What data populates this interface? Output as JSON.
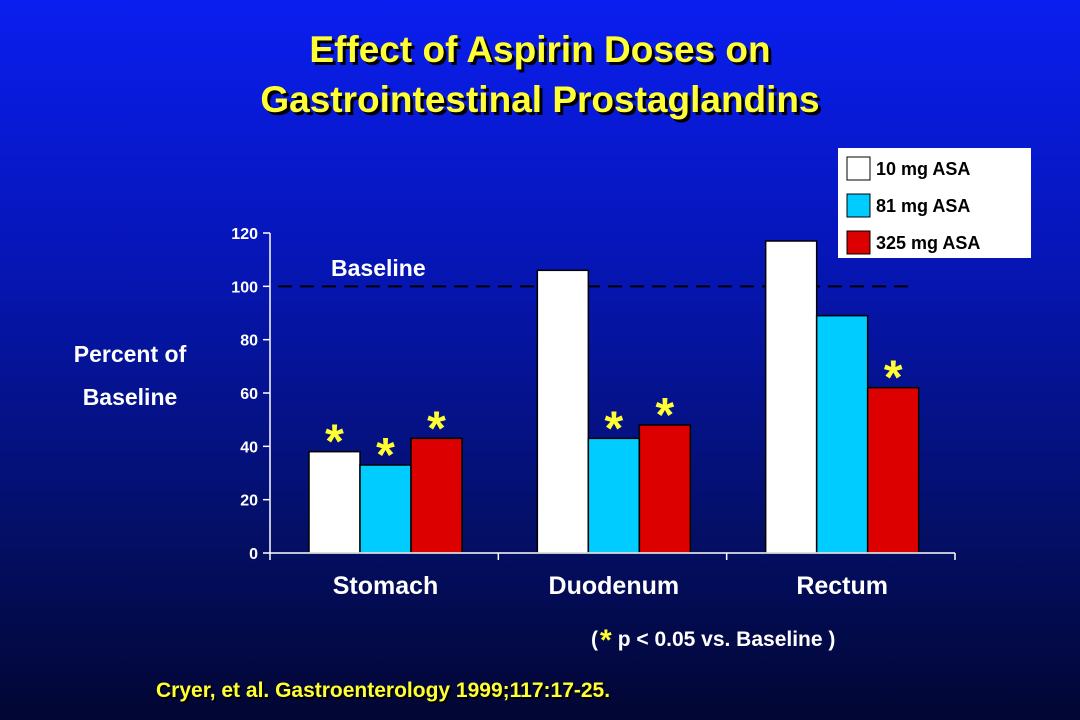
{
  "title_line1": "Effect of Aspirin Doses on",
  "title_line2": "Gastrointestinal Prostaglandins",
  "ylabel_line1": "Percent of",
  "ylabel_line2": "Baseline",
  "footnote": {
    "open": "(",
    "star": "*",
    "text": "p < 0.05 vs. Baseline )"
  },
  "citation": "Cryer, et al. Gastroenterology 1999;117:17-25.",
  "chart_data": {
    "type": "bar",
    "categories": [
      "Stomach",
      "Duodenum",
      "Rectum"
    ],
    "series": [
      {
        "name": "10 mg ASA",
        "color": "#ffffff",
        "values": [
          38,
          106,
          117
        ],
        "significant": [
          true,
          false,
          false
        ]
      },
      {
        "name": "81 mg ASA",
        "color": "#00ccff",
        "values": [
          33,
          43,
          89
        ],
        "significant": [
          true,
          true,
          false
        ]
      },
      {
        "name": "325 mg ASA",
        "color": "#dd0000",
        "values": [
          43,
          48,
          62
        ],
        "significant": [
          true,
          true,
          true
        ]
      }
    ],
    "ylim": [
      0,
      120
    ],
    "yticks": [
      0,
      20,
      40,
      60,
      80,
      100,
      120
    ],
    "reference_line": {
      "value": 100,
      "label": "Baseline",
      "style": "dashed"
    },
    "significance_marker": "*",
    "significance_color": "#ffff33",
    "legend_position": "top-right",
    "grid": false
  }
}
